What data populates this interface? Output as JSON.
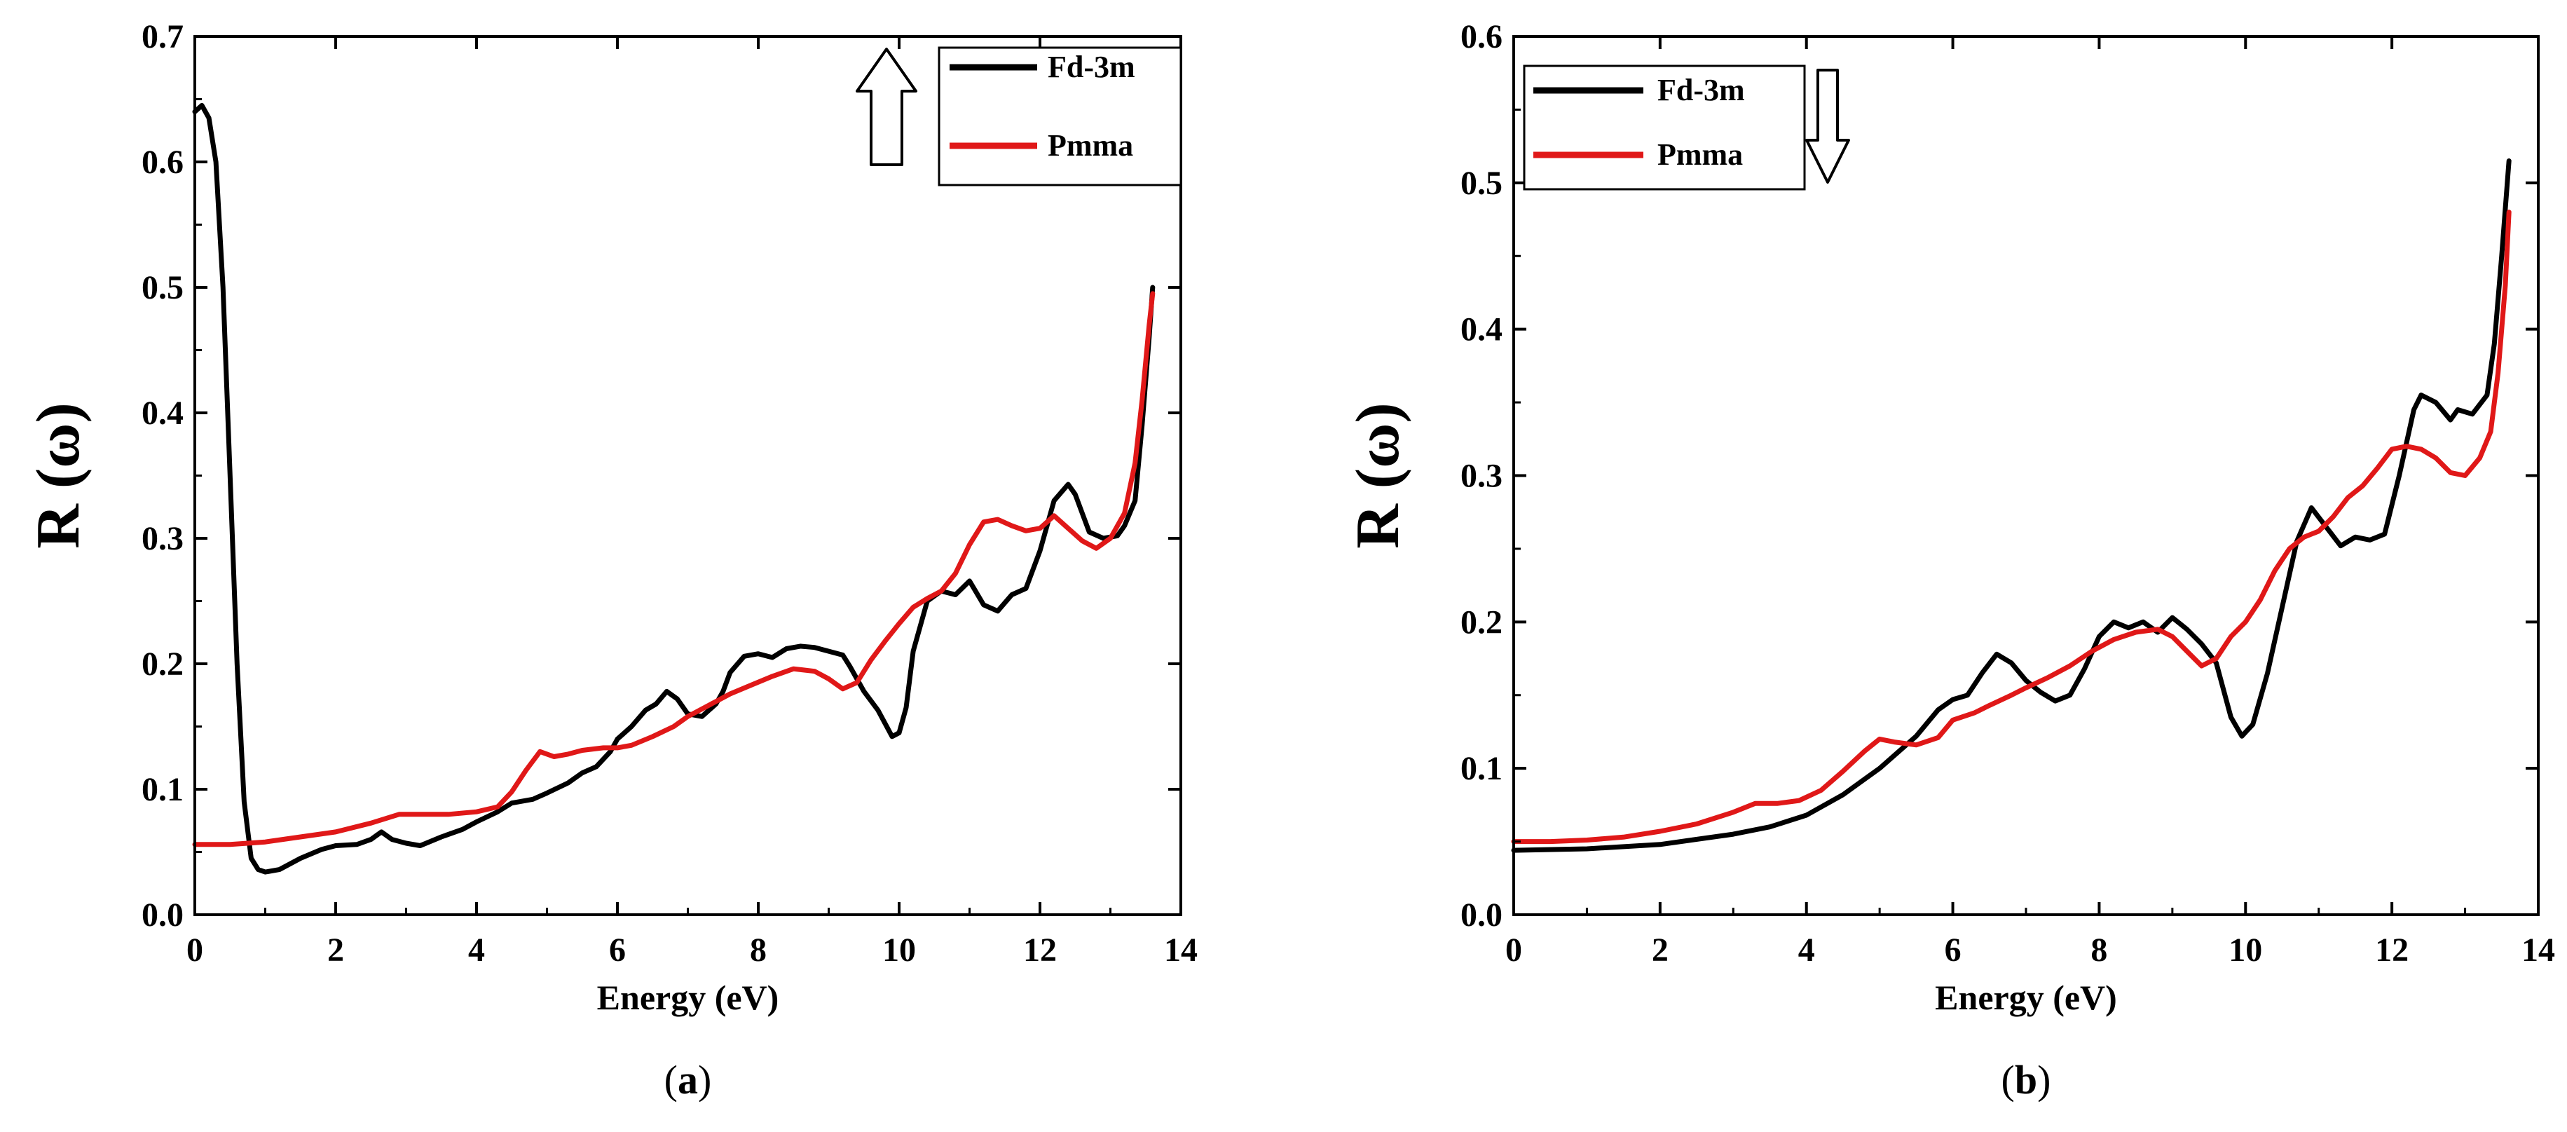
{
  "colors": {
    "fd3m": "#000000",
    "pmma": "#e01818",
    "axis": "#000000",
    "background": "#ffffff"
  },
  "chart_data": [
    {
      "type": "line",
      "panel_label": "a",
      "title": "",
      "xlabel": "Energy (eV)",
      "ylabel": "R (ω)",
      "xlim": [
        0,
        14
      ],
      "ylim": [
        0,
        0.7
      ],
      "x_ticks": [
        0,
        2,
        4,
        6,
        8,
        10,
        12,
        14
      ],
      "y_ticks": [
        0.0,
        0.1,
        0.2,
        0.3,
        0.4,
        0.5,
        0.6,
        0.7
      ],
      "y_tick_labels": [
        "0.0",
        "0.1",
        "0.2",
        "0.3",
        "0.4",
        "0.5",
        "0.6",
        "0.7"
      ],
      "grid": false,
      "spin_arrow": "up",
      "legend": {
        "position": "top-right",
        "entries": [
          "Fd-3m",
          "Pmma"
        ]
      },
      "series": [
        {
          "name": "Fd-3m",
          "color": "#000000",
          "points": [
            [
              0,
              0.64
            ],
            [
              0.1,
              0.645
            ],
            [
              0.2,
              0.635
            ],
            [
              0.3,
              0.6
            ],
            [
              0.4,
              0.5
            ],
            [
              0.5,
              0.35
            ],
            [
              0.6,
              0.2
            ],
            [
              0.7,
              0.09
            ],
            [
              0.8,
              0.045
            ],
            [
              0.9,
              0.036
            ],
            [
              1.0,
              0.034
            ],
            [
              1.2,
              0.036
            ],
            [
              1.5,
              0.045
            ],
            [
              1.8,
              0.052
            ],
            [
              2.0,
              0.055
            ],
            [
              2.3,
              0.056
            ],
            [
              2.5,
              0.06
            ],
            [
              2.65,
              0.066
            ],
            [
              2.8,
              0.06
            ],
            [
              3.0,
              0.057
            ],
            [
              3.2,
              0.055
            ],
            [
              3.5,
              0.062
            ],
            [
              3.8,
              0.068
            ],
            [
              4.0,
              0.074
            ],
            [
              4.3,
              0.082
            ],
            [
              4.5,
              0.089
            ],
            [
              4.8,
              0.092
            ],
            [
              5.0,
              0.097
            ],
            [
              5.3,
              0.105
            ],
            [
              5.5,
              0.113
            ],
            [
              5.7,
              0.118
            ],
            [
              5.9,
              0.13
            ],
            [
              6.0,
              0.14
            ],
            [
              6.2,
              0.15
            ],
            [
              6.4,
              0.163
            ],
            [
              6.55,
              0.168
            ],
            [
              6.7,
              0.178
            ],
            [
              6.85,
              0.172
            ],
            [
              7.0,
              0.16
            ],
            [
              7.2,
              0.158
            ],
            [
              7.4,
              0.168
            ],
            [
              7.5,
              0.178
            ],
            [
              7.6,
              0.193
            ],
            [
              7.8,
              0.206
            ],
            [
              8.0,
              0.208
            ],
            [
              8.2,
              0.205
            ],
            [
              8.4,
              0.212
            ],
            [
              8.6,
              0.214
            ],
            [
              8.8,
              0.213
            ],
            [
              9.0,
              0.21
            ],
            [
              9.2,
              0.207
            ],
            [
              9.3,
              0.198
            ],
            [
              9.5,
              0.178
            ],
            [
              9.7,
              0.163
            ],
            [
              9.9,
              0.142
            ],
            [
              10.0,
              0.145
            ],
            [
              10.1,
              0.165
            ],
            [
              10.2,
              0.21
            ],
            [
              10.4,
              0.25
            ],
            [
              10.6,
              0.258
            ],
            [
              10.8,
              0.255
            ],
            [
              11.0,
              0.266
            ],
            [
              11.2,
              0.247
            ],
            [
              11.4,
              0.242
            ],
            [
              11.6,
              0.255
            ],
            [
              11.8,
              0.26
            ],
            [
              12.0,
              0.29
            ],
            [
              12.2,
              0.33
            ],
            [
              12.4,
              0.343
            ],
            [
              12.5,
              0.335
            ],
            [
              12.7,
              0.305
            ],
            [
              12.9,
              0.3
            ],
            [
              13.1,
              0.302
            ],
            [
              13.2,
              0.31
            ],
            [
              13.35,
              0.33
            ],
            [
              13.45,
              0.39
            ],
            [
              13.55,
              0.46
            ],
            [
              13.6,
              0.5
            ]
          ]
        },
        {
          "name": "Pmma",
          "color": "#e01818",
          "points": [
            [
              0,
              0.056
            ],
            [
              0.5,
              0.056
            ],
            [
              1.0,
              0.058
            ],
            [
              1.5,
              0.062
            ],
            [
              2.0,
              0.066
            ],
            [
              2.5,
              0.073
            ],
            [
              2.9,
              0.08
            ],
            [
              3.3,
              0.08
            ],
            [
              3.6,
              0.08
            ],
            [
              4.0,
              0.082
            ],
            [
              4.3,
              0.086
            ],
            [
              4.5,
              0.098
            ],
            [
              4.7,
              0.115
            ],
            [
              4.9,
              0.13
            ],
            [
              5.1,
              0.126
            ],
            [
              5.3,
              0.128
            ],
            [
              5.5,
              0.131
            ],
            [
              5.8,
              0.133
            ],
            [
              6.0,
              0.133
            ],
            [
              6.2,
              0.135
            ],
            [
              6.5,
              0.142
            ],
            [
              6.8,
              0.15
            ],
            [
              7.0,
              0.158
            ],
            [
              7.3,
              0.167
            ],
            [
              7.6,
              0.176
            ],
            [
              7.9,
              0.183
            ],
            [
              8.2,
              0.19
            ],
            [
              8.5,
              0.196
            ],
            [
              8.8,
              0.194
            ],
            [
              9.0,
              0.188
            ],
            [
              9.2,
              0.18
            ],
            [
              9.4,
              0.185
            ],
            [
              9.6,
              0.203
            ],
            [
              9.8,
              0.218
            ],
            [
              10.0,
              0.232
            ],
            [
              10.2,
              0.245
            ],
            [
              10.4,
              0.252
            ],
            [
              10.6,
              0.258
            ],
            [
              10.8,
              0.272
            ],
            [
              11.0,
              0.295
            ],
            [
              11.2,
              0.313
            ],
            [
              11.4,
              0.315
            ],
            [
              11.6,
              0.31
            ],
            [
              11.8,
              0.306
            ],
            [
              12.0,
              0.308
            ],
            [
              12.2,
              0.318
            ],
            [
              12.4,
              0.308
            ],
            [
              12.6,
              0.298
            ],
            [
              12.8,
              0.292
            ],
            [
              13.0,
              0.3
            ],
            [
              13.2,
              0.32
            ],
            [
              13.35,
              0.36
            ],
            [
              13.45,
              0.41
            ],
            [
              13.55,
              0.47
            ],
            [
              13.6,
              0.495
            ]
          ]
        }
      ]
    },
    {
      "type": "line",
      "panel_label": "b",
      "title": "",
      "xlabel": "Energy (eV)",
      "ylabel": "R (ω)",
      "xlim": [
        0,
        14
      ],
      "ylim": [
        0,
        0.6
      ],
      "x_ticks": [
        0,
        2,
        4,
        6,
        8,
        10,
        12,
        14
      ],
      "y_ticks": [
        0.0,
        0.1,
        0.2,
        0.3,
        0.4,
        0.5,
        0.6
      ],
      "y_tick_labels": [
        "0.0",
        "0.1",
        "0.2",
        "0.3",
        "0.4",
        "0.5",
        "0.6"
      ],
      "grid": false,
      "spin_arrow": "down",
      "legend": {
        "position": "top-left",
        "entries": [
          "Fd-3m",
          "Pmma"
        ]
      },
      "series": [
        {
          "name": "Fd-3m",
          "color": "#000000",
          "points": [
            [
              0,
              0.044
            ],
            [
              1.0,
              0.045
            ],
            [
              2.0,
              0.048
            ],
            [
              3.0,
              0.055
            ],
            [
              3.5,
              0.06
            ],
            [
              4.0,
              0.068
            ],
            [
              4.5,
              0.082
            ],
            [
              5.0,
              0.1
            ],
            [
              5.5,
              0.122
            ],
            [
              5.8,
              0.14
            ],
            [
              6.0,
              0.147
            ],
            [
              6.2,
              0.15
            ],
            [
              6.4,
              0.165
            ],
            [
              6.6,
              0.178
            ],
            [
              6.8,
              0.172
            ],
            [
              7.0,
              0.16
            ],
            [
              7.2,
              0.152
            ],
            [
              7.4,
              0.146
            ],
            [
              7.6,
              0.15
            ],
            [
              7.8,
              0.168
            ],
            [
              8.0,
              0.19
            ],
            [
              8.2,
              0.2
            ],
            [
              8.4,
              0.196
            ],
            [
              8.6,
              0.2
            ],
            [
              8.8,
              0.193
            ],
            [
              9.0,
              0.203
            ],
            [
              9.2,
              0.195
            ],
            [
              9.4,
              0.185
            ],
            [
              9.6,
              0.172
            ],
            [
              9.8,
              0.135
            ],
            [
              9.95,
              0.122
            ],
            [
              10.1,
              0.13
            ],
            [
              10.3,
              0.165
            ],
            [
              10.5,
              0.21
            ],
            [
              10.7,
              0.255
            ],
            [
              10.9,
              0.278
            ],
            [
              11.1,
              0.265
            ],
            [
              11.3,
              0.252
            ],
            [
              11.5,
              0.258
            ],
            [
              11.7,
              0.256
            ],
            [
              11.9,
              0.26
            ],
            [
              12.1,
              0.3
            ],
            [
              12.3,
              0.345
            ],
            [
              12.4,
              0.355
            ],
            [
              12.6,
              0.35
            ],
            [
              12.8,
              0.338
            ],
            [
              12.9,
              0.345
            ],
            [
              13.1,
              0.342
            ],
            [
              13.3,
              0.355
            ],
            [
              13.4,
              0.39
            ],
            [
              13.5,
              0.45
            ],
            [
              13.6,
              0.515
            ]
          ]
        },
        {
          "name": "Pmma",
          "color": "#e01818",
          "points": [
            [
              0,
              0.05
            ],
            [
              0.5,
              0.05
            ],
            [
              1.0,
              0.051
            ],
            [
              1.5,
              0.053
            ],
            [
              2.0,
              0.057
            ],
            [
              2.5,
              0.062
            ],
            [
              3.0,
              0.07
            ],
            [
              3.3,
              0.076
            ],
            [
              3.6,
              0.076
            ],
            [
              3.9,
              0.078
            ],
            [
              4.2,
              0.085
            ],
            [
              4.5,
              0.098
            ],
            [
              4.8,
              0.112
            ],
            [
              5.0,
              0.12
            ],
            [
              5.2,
              0.118
            ],
            [
              5.5,
              0.116
            ],
            [
              5.8,
              0.121
            ],
            [
              6.0,
              0.133
            ],
            [
              6.3,
              0.138
            ],
            [
              6.5,
              0.143
            ],
            [
              6.8,
              0.15
            ],
            [
              7.0,
              0.155
            ],
            [
              7.3,
              0.162
            ],
            [
              7.6,
              0.17
            ],
            [
              7.9,
              0.18
            ],
            [
              8.2,
              0.188
            ],
            [
              8.5,
              0.193
            ],
            [
              8.8,
              0.195
            ],
            [
              9.0,
              0.19
            ],
            [
              9.2,
              0.18
            ],
            [
              9.4,
              0.17
            ],
            [
              9.6,
              0.175
            ],
            [
              9.8,
              0.19
            ],
            [
              10.0,
              0.2
            ],
            [
              10.2,
              0.215
            ],
            [
              10.4,
              0.235
            ],
            [
              10.6,
              0.25
            ],
            [
              10.8,
              0.258
            ],
            [
              11.0,
              0.262
            ],
            [
              11.2,
              0.272
            ],
            [
              11.4,
              0.285
            ],
            [
              11.6,
              0.293
            ],
            [
              11.8,
              0.305
            ],
            [
              12.0,
              0.318
            ],
            [
              12.2,
              0.32
            ],
            [
              12.4,
              0.318
            ],
            [
              12.6,
              0.312
            ],
            [
              12.8,
              0.302
            ],
            [
              13.0,
              0.3
            ],
            [
              13.2,
              0.312
            ],
            [
              13.35,
              0.33
            ],
            [
              13.45,
              0.37
            ],
            [
              13.55,
              0.43
            ],
            [
              13.6,
              0.48
            ]
          ]
        }
      ]
    }
  ]
}
